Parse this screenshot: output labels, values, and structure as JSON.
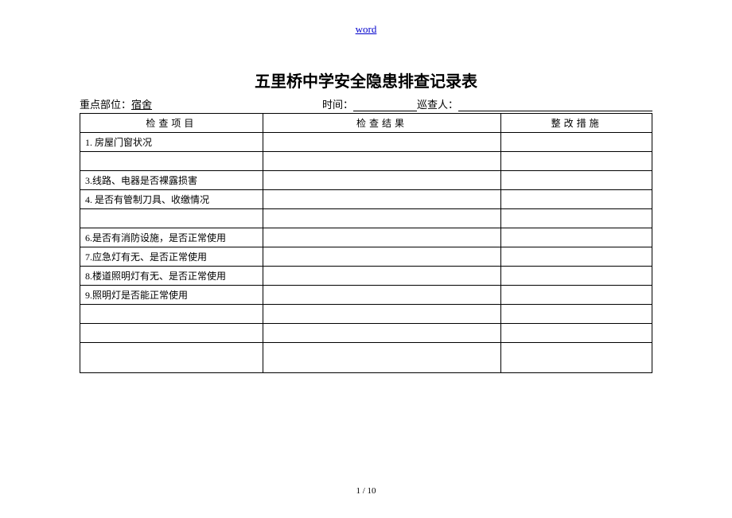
{
  "header": {
    "link_text": "word"
  },
  "title": "五里桥中学安全隐患排查记录表",
  "meta": {
    "label_location": "重点部位：",
    "value_location": "宿舍",
    "label_time": "时间：",
    "label_inspector": "巡查人："
  },
  "table": {
    "headers": {
      "col1": "检查项目",
      "col2": "检查结果",
      "col3": "整改措施"
    },
    "rows": [
      "1. 房屋门窗状况",
      "",
      "3.线路、电器是否裸露损害",
      "4. 是否有管制刀具、收缴情况",
      "",
      "6.是否有消防设施，是否正常使用",
      "7.应急灯有无、是否正常使用",
      "8.楼道照明灯有无、是否正常使用",
      "9.照明灯是否能正常使用",
      "",
      "",
      ""
    ]
  },
  "footer": {
    "page": "1 / 10"
  }
}
